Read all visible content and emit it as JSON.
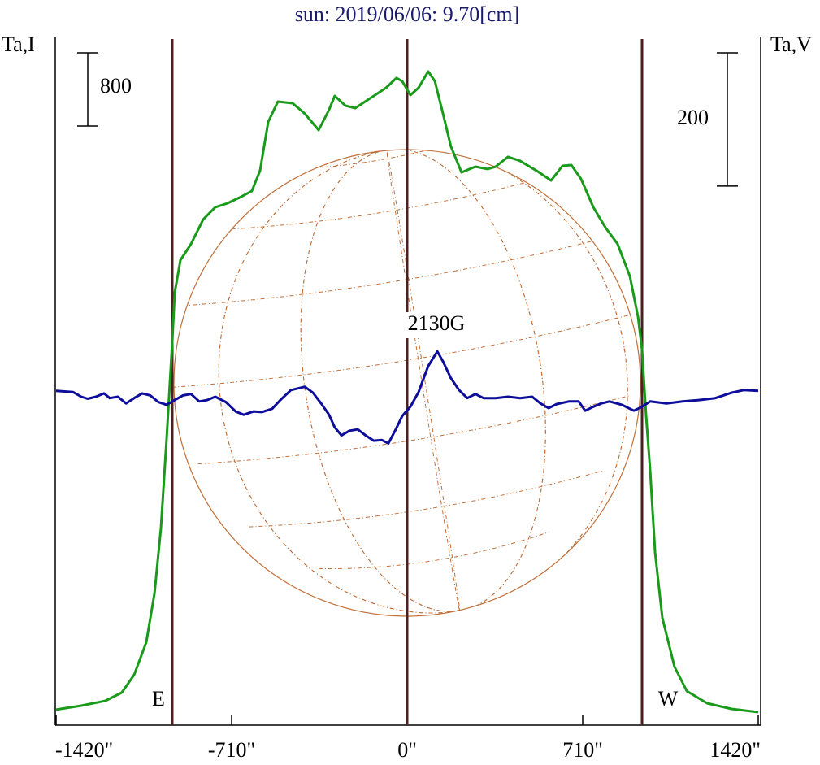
{
  "chart_data": {
    "type": "line",
    "title": "sun: 2019/06/06: 9.70[cm]",
    "ylabel": "Ta,I",
    "y2label": "Ta,V",
    "xlim": [
      -1420,
      1420
    ],
    "xticks": [
      {
        "value": -1420,
        "label": "-1420\""
      },
      {
        "value": -710,
        "label": "-710\""
      },
      {
        "value": 0,
        "label": "0\""
      },
      {
        "value": 710,
        "label": "710\""
      },
      {
        "value": 1420,
        "label": "1420\""
      }
    ],
    "ylim": [
      0,
      7500
    ],
    "y2lim": [
      -500,
      530
    ],
    "scale_bars": {
      "y": 800,
      "y2": 200
    },
    "vlines": [
      {
        "value": -950,
        "label": "E"
      },
      {
        "value": 0,
        "label": "2130G"
      },
      {
        "value": 950,
        "label": "W"
      }
    ],
    "series": [
      {
        "color": "#1a9a1a",
        "x": [
          -1420,
          -1318,
          -1220,
          -1154,
          -1104,
          -1055,
          -1022,
          -996,
          -973,
          -950,
          -940,
          -917,
          -874,
          -825,
          -776,
          -726,
          -677,
          -628,
          -595,
          -562,
          -523,
          -463,
          -414,
          -358,
          -316,
          -293,
          -250,
          -210,
          -135,
          -85,
          -43,
          -20,
          13,
          46,
          85,
          112,
          145,
          177,
          220,
          276,
          325,
          358,
          408,
          457,
          523,
          582,
          628,
          664,
          703,
          753,
          802,
          851,
          901,
          934,
          950,
          966,
          983,
          1003,
          1032,
          1081,
          1131,
          1213,
          1312,
          1420
        ],
        "values": [
          170,
          213,
          267,
          356,
          551,
          906,
          1440,
          2151,
          3128,
          4195,
          4728,
          5083,
          5261,
          5528,
          5661,
          5705,
          5768,
          5839,
          6061,
          6594,
          6816,
          6798,
          6683,
          6505,
          6727,
          6878,
          6772,
          6745,
          6878,
          6967,
          7074,
          7039,
          6887,
          6967,
          7145,
          7039,
          6683,
          6327,
          6043,
          6105,
          6079,
          6105,
          6212,
          6168,
          6061,
          5954,
          6114,
          6123,
          5972,
          5661,
          5439,
          5261,
          4906,
          4461,
          4106,
          3395,
          2773,
          1884,
          1173,
          640,
          373,
          240,
          178,
          142
        ]
      },
      {
        "color": "#0d0d9a",
        "axis": "y2",
        "x": [
          -1420,
          -1351,
          -1318,
          -1292,
          -1259,
          -1226,
          -1203,
          -1170,
          -1137,
          -1104,
          -1072,
          -1039,
          -1006,
          -973,
          -940,
          -907,
          -874,
          -841,
          -809,
          -776,
          -733,
          -694,
          -661,
          -621,
          -588,
          -546,
          -513,
          -470,
          -414,
          -381,
          -348,
          -316,
          -293,
          -266,
          -233,
          -200,
          -168,
          -135,
          -102,
          -76,
          -46,
          -20,
          13,
          46,
          85,
          122,
          145,
          177,
          210,
          243,
          276,
          309,
          358,
          408,
          457,
          506,
          539,
          572,
          605,
          654,
          694,
          720,
          753,
          786,
          818,
          868,
          917,
          950,
          983,
          1049,
          1114,
          1180,
          1246,
          1312,
          1361,
          1420
        ],
        "values": [
          2,
          0,
          -7,
          -10,
          -7,
          -2,
          -9,
          -7,
          -17,
          -9,
          -2,
          -5,
          -15,
          -19,
          -12,
          -5,
          -3,
          -14,
          -12,
          -7,
          -15,
          -29,
          -34,
          -29,
          -30,
          -25,
          -12,
          3,
          8,
          -1,
          -17,
          -34,
          -53,
          -65,
          -58,
          -56,
          -65,
          -73,
          -72,
          -77,
          -56,
          -36,
          -22,
          0,
          39,
          61,
          46,
          21,
          3,
          -9,
          -3,
          -9,
          -9,
          -7,
          -9,
          -7,
          -17,
          -24,
          -18,
          -14,
          -14,
          -28,
          -22,
          -17,
          -14,
          -19,
          -28,
          -22,
          -14,
          -17,
          -14,
          -12,
          -9,
          -1,
          3,
          2
        ]
      }
    ]
  }
}
